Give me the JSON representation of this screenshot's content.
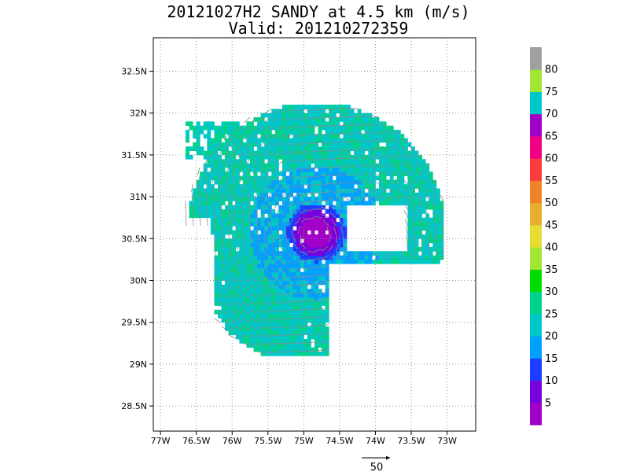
{
  "title": {
    "line1": "20121027H2 SANDY at 4.5 km (m/s)",
    "line2": "Valid: 201210272359"
  },
  "map": {
    "lon_range": [
      -77.1,
      -72.6
    ],
    "lat_range": [
      28.2,
      32.9
    ],
    "lon_ticks": [
      {
        "value": -77,
        "label": "77W"
      },
      {
        "value": -76.5,
        "label": "76.5W"
      },
      {
        "value": -76,
        "label": "76W"
      },
      {
        "value": -75.5,
        "label": "75.5W"
      },
      {
        "value": -75,
        "label": "75W"
      },
      {
        "value": -74.5,
        "label": "74.5W"
      },
      {
        "value": -74,
        "label": "74W"
      },
      {
        "value": -73.5,
        "label": "73.5W"
      },
      {
        "value": -73,
        "label": "73W"
      }
    ],
    "lat_ticks": [
      {
        "value": 28.5,
        "label": "28.5N"
      },
      {
        "value": 29,
        "label": "29N"
      },
      {
        "value": 29.5,
        "label": "29.5N"
      },
      {
        "value": 30,
        "label": "30N"
      },
      {
        "value": 30.5,
        "label": "30.5N"
      },
      {
        "value": 31,
        "label": "31N"
      },
      {
        "value": 31.5,
        "label": "31.5N"
      },
      {
        "value": 32,
        "label": "32N"
      },
      {
        "value": 32.5,
        "label": "32.5N"
      }
    ],
    "grid": true,
    "center": {
      "lon": -74.85,
      "lat": 30.55
    },
    "rmax_deg": 2.0
  },
  "colorbar": {
    "labels": [
      "5",
      "10",
      "15",
      "20",
      "25",
      "30",
      "35",
      "40",
      "45",
      "50",
      "55",
      "60",
      "65",
      "70",
      "75",
      "80"
    ],
    "colors": [
      "#a000c8",
      "#7800dc",
      "#1e3cff",
      "#00a0ff",
      "#00c8c8",
      "#00d28c",
      "#00dc00",
      "#a0e632",
      "#e6dc32",
      "#e6af2d",
      "#f08228",
      "#fa3c3c",
      "#f00082",
      "#a000c8",
      "#00c8c8",
      "#a0e632",
      "#a0a0a0"
    ]
  },
  "reference_vector": {
    "label": "50",
    "speed": 50
  }
}
